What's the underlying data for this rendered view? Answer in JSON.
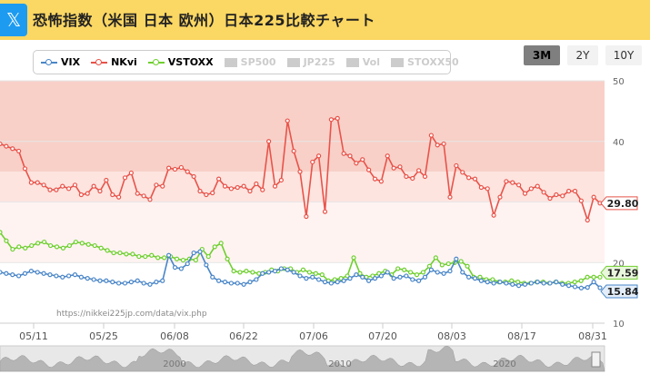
{
  "header": {
    "icon": "x-logo-icon",
    "icon_glyph": "𝕏",
    "title": "恐怖指数（米国 日本 欧州）日本225比較チャート"
  },
  "range_buttons": [
    {
      "label": "3M",
      "active": true
    },
    {
      "label": "2Y",
      "active": false
    },
    {
      "label": "10Y",
      "active": false
    }
  ],
  "legend": [
    {
      "label": "VIX",
      "color": "#4a86c8",
      "enabled": true
    },
    {
      "label": "NKvi",
      "color": "#e8534a",
      "enabled": true
    },
    {
      "label": "VSTOXX",
      "color": "#6fcf2f",
      "enabled": true
    },
    {
      "label": "SP500",
      "enabled": false
    },
    {
      "label": "JP225",
      "enabled": false
    },
    {
      "label": "Vol",
      "enabled": false
    },
    {
      "label": "STOXX50",
      "enabled": false
    }
  ],
  "source_text": "https://nikkei225jp.com/data/vix.php",
  "navigator_labels": [
    "2000",
    "2010",
    "2020"
  ],
  "chart_data": {
    "type": "line",
    "yaxis_ticks": [
      10,
      20,
      30,
      40,
      50
    ],
    "ylim": [
      10,
      50
    ],
    "x_tick_labels": [
      "05/11",
      "05/25",
      "06/08",
      "06/22",
      "07/06",
      "07/20",
      "08/03",
      "08/17",
      "08/31"
    ],
    "bands": [
      {
        "from": 35,
        "to": 50,
        "color": "#f8d0c8"
      },
      {
        "from": 30,
        "to": 35,
        "color": "#fde4df"
      },
      {
        "from": 20,
        "to": 30,
        "color": "#fff3f1"
      }
    ],
    "last_values": {
      "NKvi": "29.80",
      "VSTOXX": "17.59",
      "VIX": "15.84"
    },
    "series": [
      {
        "name": "NKvi",
        "color": "#e8534a",
        "values": [
          39.6,
          39.2,
          38.8,
          38.4,
          35.5,
          33.2,
          33.2,
          32.8,
          32.0,
          32.0,
          32.6,
          32.2,
          32.8,
          31.2,
          31.4,
          32.6,
          31.8,
          33.6,
          31.2,
          30.8,
          34.0,
          34.8,
          31.4,
          31.0,
          30.4,
          32.8,
          32.6,
          35.6,
          35.4,
          35.7,
          35.0,
          34.2,
          31.8,
          31.2,
          31.5,
          33.8,
          32.6,
          32.2,
          32.4,
          32.6,
          31.8,
          33.0,
          32.0,
          40.0,
          32.6,
          33.6,
          43.4,
          38.4,
          35.0,
          27.6,
          36.6,
          37.6,
          28.4,
          43.6,
          43.8,
          38.0,
          37.6,
          36.4,
          37.0,
          35.3,
          33.8,
          33.4,
          37.6,
          35.6,
          35.8,
          34.2,
          33.9,
          35.2,
          34.2,
          41.0,
          39.4,
          39.6,
          30.8,
          36.0,
          34.9,
          34.0,
          33.8,
          32.4,
          32.2,
          27.8,
          30.8,
          33.4,
          33.2,
          32.8,
          31.4,
          32.2,
          32.6,
          31.6,
          30.6,
          31.2,
          31.0,
          31.8,
          31.8,
          30.2,
          27.0,
          30.8,
          29.8
        ]
      },
      {
        "name": "VSTOXX",
        "color": "#6fcf2f",
        "values": [
          25.0,
          23.6,
          22.2,
          22.6,
          22.4,
          22.8,
          23.2,
          23.4,
          22.8,
          22.6,
          22.4,
          22.8,
          23.4,
          23.2,
          23.0,
          22.8,
          22.4,
          22.0,
          21.6,
          21.6,
          21.4,
          21.4,
          21.0,
          21.0,
          21.2,
          20.8,
          20.8,
          21.0,
          20.6,
          20.4,
          20.6,
          20.4,
          22.2,
          21.0,
          22.6,
          23.2,
          20.6,
          18.6,
          18.4,
          18.6,
          18.4,
          18.2,
          18.4,
          18.8,
          18.6,
          19.0,
          19.0,
          18.4,
          18.8,
          18.4,
          18.2,
          18.0,
          17.0,
          17.2,
          17.4,
          17.8,
          20.8,
          18.2,
          17.6,
          17.8,
          18.2,
          18.6,
          18.0,
          19.0,
          18.8,
          18.4,
          18.0,
          18.4,
          19.4,
          20.8,
          19.6,
          19.8,
          20.0,
          20.2,
          19.4,
          17.6,
          17.6,
          17.2,
          17.2,
          16.8,
          16.8,
          17.0,
          16.8,
          16.6,
          16.6,
          16.8,
          16.8,
          16.6,
          16.8,
          16.6,
          16.6,
          16.8,
          17.0,
          17.6,
          17.6,
          17.59
        ]
      },
      {
        "name": "VIX",
        "color": "#4a86c8",
        "values": [
          18.4,
          18.2,
          18.0,
          17.8,
          18.2,
          18.6,
          18.4,
          18.2,
          18.0,
          17.8,
          17.6,
          17.8,
          18.0,
          17.6,
          17.4,
          17.2,
          17.0,
          17.0,
          16.8,
          16.6,
          16.6,
          16.8,
          17.0,
          16.6,
          16.4,
          16.8,
          17.0,
          21.2,
          19.2,
          19.0,
          19.8,
          21.6,
          21.8,
          19.6,
          17.6,
          17.0,
          16.8,
          16.6,
          16.6,
          16.4,
          16.8,
          17.2,
          18.2,
          18.4,
          18.6,
          19.0,
          18.8,
          18.4,
          17.8,
          17.4,
          17.6,
          17.2,
          16.8,
          16.6,
          16.8,
          17.0,
          17.4,
          18.0,
          17.6,
          17.0,
          17.4,
          17.8,
          18.4,
          17.4,
          17.6,
          17.8,
          17.2,
          17.0,
          17.6,
          18.8,
          18.4,
          18.2,
          18.6,
          20.6,
          18.4,
          17.6,
          17.4,
          17.0,
          16.8,
          16.6,
          16.8,
          16.6,
          16.4,
          16.2,
          16.4,
          16.6,
          16.8,
          16.6,
          16.6,
          16.8,
          16.4,
          16.2,
          16.0,
          15.8,
          15.9,
          16.8,
          15.84
        ]
      }
    ]
  }
}
